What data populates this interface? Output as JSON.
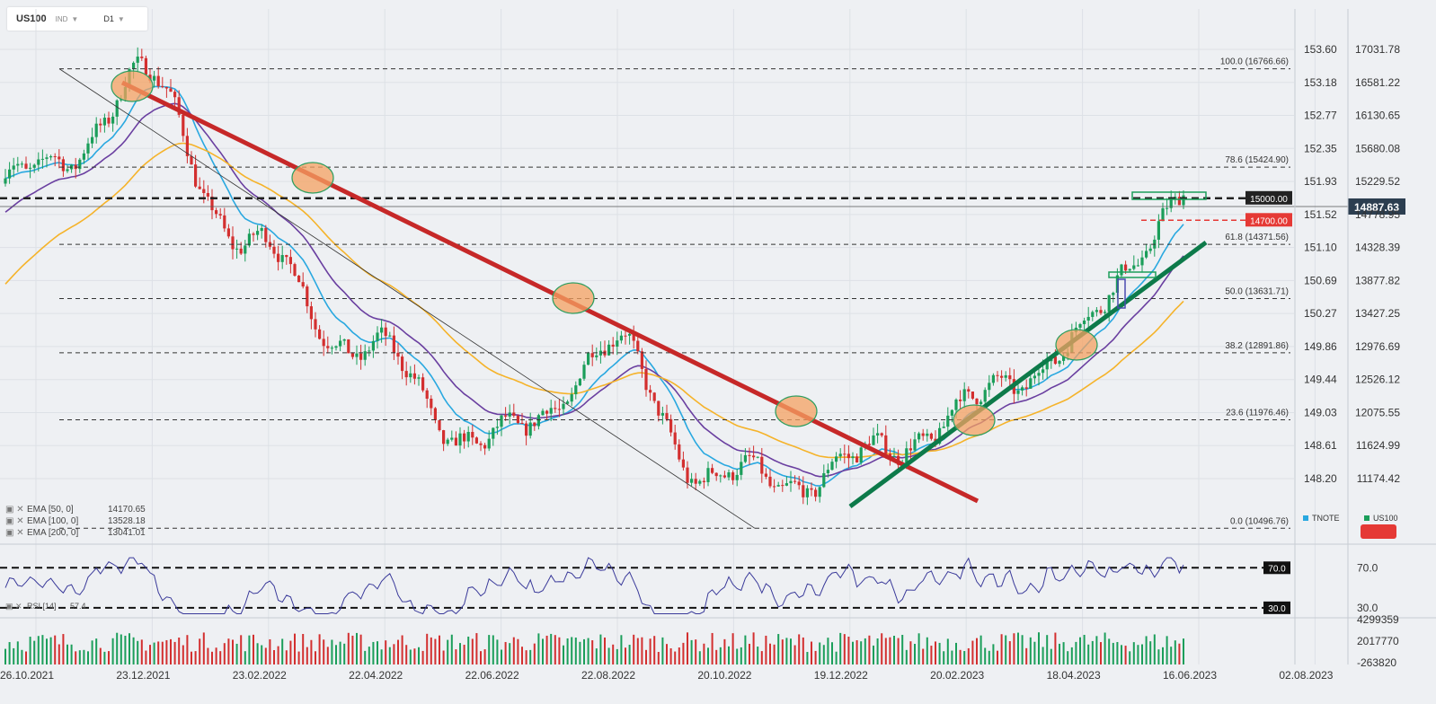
{
  "toolbar": {
    "symbol": "US100",
    "type": "IND",
    "timeframe": "D1",
    "dropdown_icon": "chevron-down-icon"
  },
  "chart_data": {
    "type": "candlestick",
    "symbol": "US100",
    "right_axis": {
      "ticks": [
        "17031.78",
        "16581.22",
        "16130.65",
        "15680.08",
        "15229.52",
        "14778.95",
        "14328.39",
        "13877.82",
        "13427.25",
        "12976.69",
        "12526.12",
        "12075.55",
        "11624.99",
        "11174.42"
      ]
    },
    "left_axis": {
      "ticks": [
        "153.60",
        "153.18",
        "152.77",
        "152.35",
        "151.93",
        "151.52",
        "151.10",
        "150.69",
        "150.27",
        "149.86",
        "149.44",
        "149.03",
        "148.61",
        "148.20"
      ]
    },
    "x_axis": {
      "ticks": [
        "26.10.2021",
        "23.12.2021",
        "23.02.2022",
        "22.04.2022",
        "22.06.2022",
        "22.08.2022",
        "20.10.2022",
        "19.12.2022",
        "20.02.2023",
        "18.04.2023",
        "16.06.2023",
        "02.08.2023"
      ]
    },
    "fibonacci": [
      {
        "label": "100.0 (16766.66)",
        "value": 16766.66
      },
      {
        "label": "78.6 (15424.90)",
        "value": 15424.9
      },
      {
        "label": "61.8 (14371.56)",
        "value": 14371.56
      },
      {
        "label": "50.0 (13631.71)",
        "value": 13631.71
      },
      {
        "label": "38.2 (12891.86)",
        "value": 12891.86
      },
      {
        "label": "23.6 (11976.46)",
        "value": 11976.46
      },
      {
        "label": "0.0 (10496.76)",
        "value": 10496.76
      }
    ],
    "levels": [
      {
        "label": "15000.00",
        "value": 15000.0,
        "color": "#222222"
      },
      {
        "label": "14700.00",
        "value": 14700.0,
        "color": "#e53935"
      }
    ],
    "current_price": {
      "label": "14887.63",
      "value": 14887.63
    },
    "indicators": [
      {
        "label": "EMA [50, 0]",
        "value": "14170.65",
        "color": "#29a8e0"
      },
      {
        "label": "EMA [100, 0]",
        "value": "13528.18",
        "color": "#6a3fa0"
      },
      {
        "label": "EMA [200, 0]",
        "value": "13041.01",
        "color": "#f5b32a"
      }
    ],
    "legend": [
      {
        "label": "TNOTE",
        "color": "#29a8e0"
      },
      {
        "label": "US100",
        "color": "#1b9e5a"
      }
    ],
    "close_anchors": [
      {
        "x": "26.10.2021",
        "close": 15240
      },
      {
        "x": "23.12.2021",
        "close": 16550
      },
      {
        "x": "23.02.2022",
        "close": 14200
      },
      {
        "x": "22.04.2022",
        "close": 12800
      },
      {
        "x": "22.06.2022",
        "close": 11600
      },
      {
        "x": "22.08.2022",
        "close": 12900
      },
      {
        "x": "20.10.2022",
        "close": 11100
      },
      {
        "x": "19.12.2022",
        "close": 11300
      },
      {
        "x": "20.02.2023",
        "close": 12050
      },
      {
        "x": "18.04.2023",
        "close": 13050
      },
      {
        "x": "16.06.2023",
        "close": 15200
      }
    ],
    "rsi": {
      "label": "RSI [14]",
      "value": "57.4",
      "levels": [
        "70.0",
        "30.0"
      ],
      "axis_ticks": [
        "70.0",
        "30.0"
      ]
    },
    "volume": {
      "axis_ticks": [
        "4299359",
        "2017770",
        "-263820"
      ]
    }
  }
}
